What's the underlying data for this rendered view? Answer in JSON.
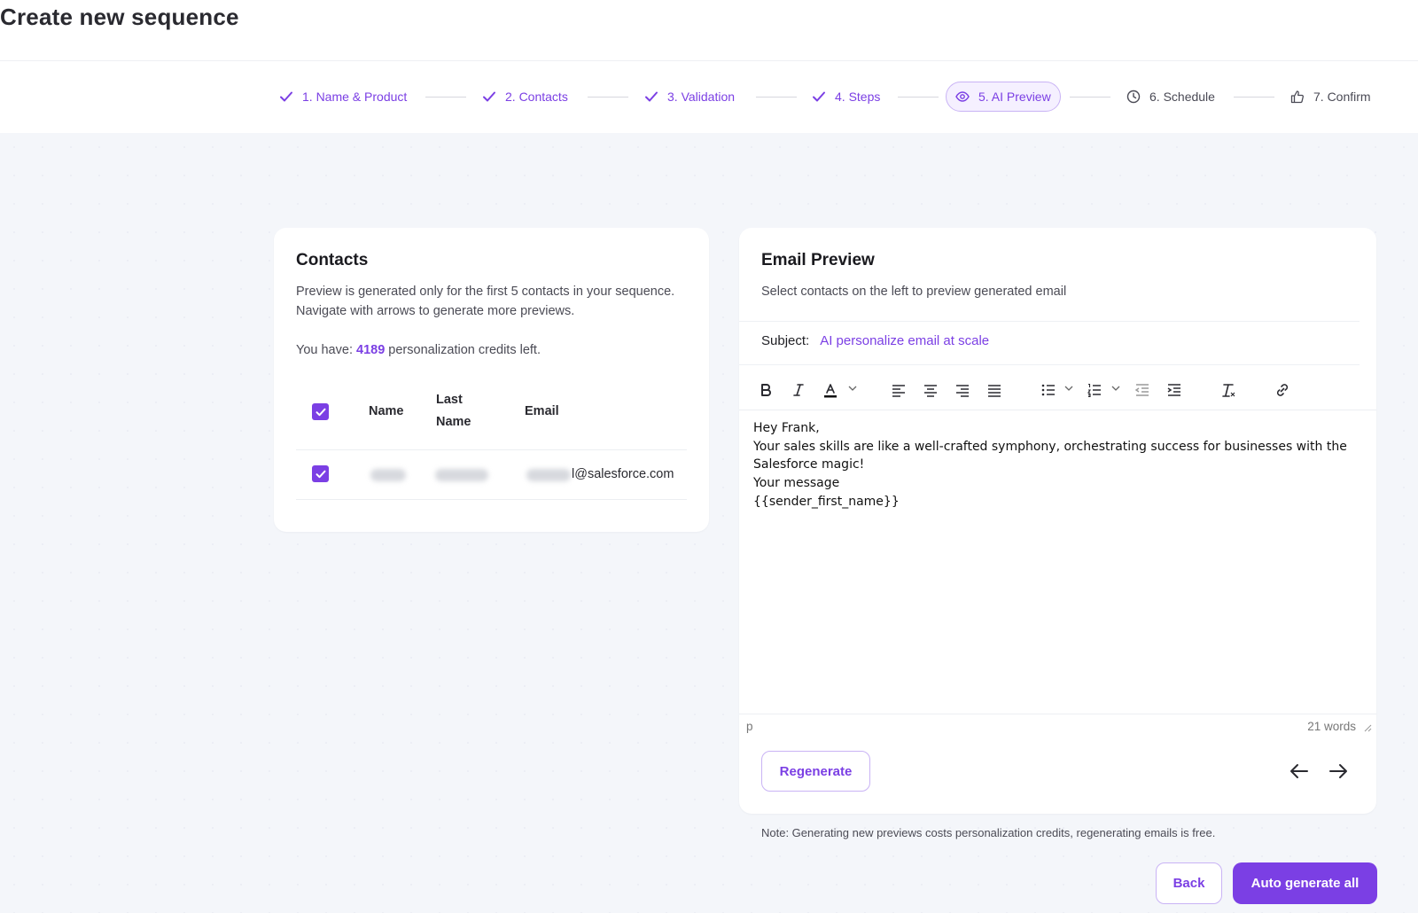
{
  "page": {
    "title": "Create new sequence"
  },
  "stepper": {
    "steps": [
      {
        "label": "1. Name & Product",
        "state": "done",
        "icon": "check-icon"
      },
      {
        "label": "2. Contacts",
        "state": "done",
        "icon": "check-icon"
      },
      {
        "label": "3. Validation",
        "state": "done",
        "icon": "check-icon"
      },
      {
        "label": "4. Steps",
        "state": "done",
        "icon": "check-icon"
      },
      {
        "label": "5. AI Preview",
        "state": "active",
        "icon": "eye-icon"
      },
      {
        "label": "6. Schedule",
        "state": "pending",
        "icon": "clock-icon"
      },
      {
        "label": "7. Confirm",
        "state": "pending",
        "icon": "thumbs-up-icon"
      }
    ]
  },
  "contacts": {
    "title": "Contacts",
    "description": "Preview is generated only for the first 5 contacts in your sequence. Navigate with arrows to generate more previews.",
    "credits_prefix": "You have:",
    "credits_value": "4189",
    "credits_suffix": "personalization credits left.",
    "table": {
      "headers": {
        "name": "Name",
        "last_name_line1": "Last",
        "last_name_line2": "Name",
        "email": "Email"
      },
      "rows": [
        {
          "selected": true,
          "email_visible": "l@salesforce.com"
        }
      ]
    }
  },
  "preview": {
    "title": "Email Preview",
    "subtitle": "Select contacts on the left to preview generated email",
    "subject_label": "Subject:",
    "subject_value": "AI personalize email at scale",
    "body_lines": [
      "Hey Frank,",
      "Your sales skills are like a well-crafted symphony, orchestrating success for businesses with the",
      "Salesforce magic!",
      "Your message",
      "{{sender_first_name}}"
    ],
    "status_path": "p",
    "word_count": "21 words",
    "regenerate_label": "Regenerate"
  },
  "footer": {
    "note": "Note: Generating new previews costs personalization credits, regenerating emails is free.",
    "back_label": "Back",
    "auto_generate_label": "Auto generate all"
  },
  "colors": {
    "accent": "#7b3fe4",
    "accent_border": "#c9b3f5",
    "background": "#f4f6fa"
  }
}
